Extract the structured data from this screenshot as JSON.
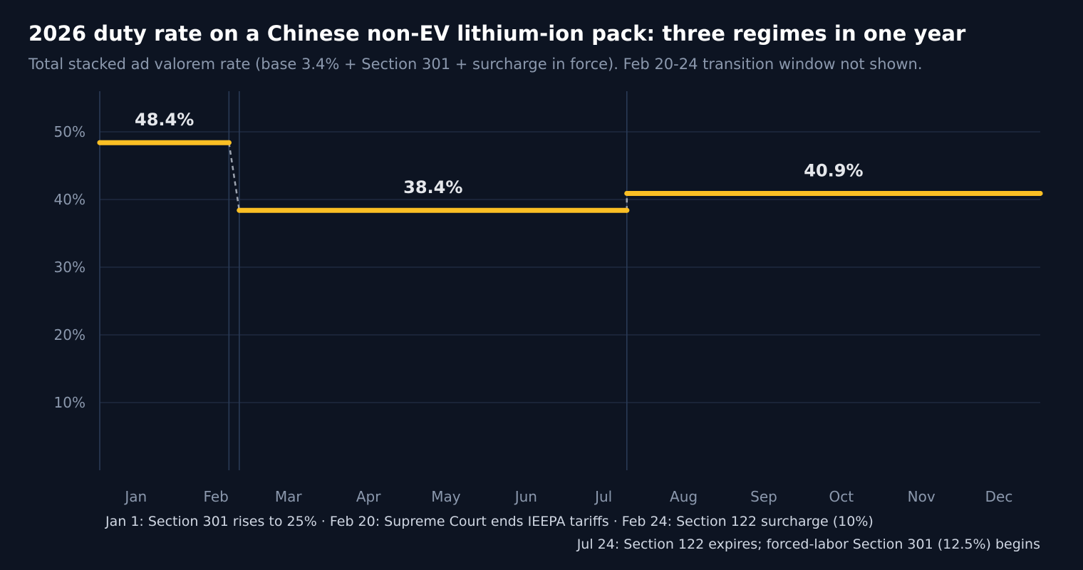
{
  "title": "2026 duty rate on a Chinese non-EV lithium-ion pack: three regimes in one year",
  "subtitle": "Total stacked ad valorem rate (base 3.4% + Section 301 + surcharge in force). Feb 20-24 transition window not shown.",
  "notes": {
    "line1": "Jan 1: Section 301 rises to 25% · Feb 20: Supreme Court ends IEEPA tariffs · Feb 24: Section 122 surcharge (10%)",
    "line2": "Jul 24: Section 122 expires; forced-labor Section 301 (12.5%) begins"
  },
  "colors": {
    "background": "#0d1422",
    "rate_line": "#fbbf24",
    "grid": "#1e2a40",
    "event_line": "#2a3a56",
    "transition": "#9ca3af",
    "label": "#e5e7eb",
    "tick": "#8b98ad"
  },
  "chart_data": {
    "type": "line",
    "title": "2026 duty rate on a Chinese non-EV lithium-ion pack: three regimes in one year",
    "xlabel": "",
    "ylabel": "",
    "x_range": [
      "2026-01-01",
      "2026-12-31"
    ],
    "ylim": [
      0,
      56
    ],
    "y_ticks": [
      10,
      20,
      30,
      40,
      50
    ],
    "y_tick_format": "%",
    "x_tick_labels": [
      "Jan",
      "Feb",
      "Mar",
      "Apr",
      "May",
      "Jun",
      "Jul",
      "Aug",
      "Sep",
      "Oct",
      "Nov",
      "Dec"
    ],
    "grid": "horizontal",
    "event_dates": [
      "2026-01-01",
      "2026-02-20",
      "2026-02-24",
      "2026-07-24"
    ],
    "segments": [
      {
        "start": "2026-01-01",
        "end": "2026-02-20",
        "value": 48.4,
        "label": "48.4%"
      },
      {
        "start": "2026-02-24",
        "end": "2026-07-24",
        "value": 38.4,
        "label": "38.4%"
      },
      {
        "start": "2026-07-24",
        "end": "2026-12-31",
        "value": 40.9,
        "label": "40.9%"
      }
    ]
  }
}
